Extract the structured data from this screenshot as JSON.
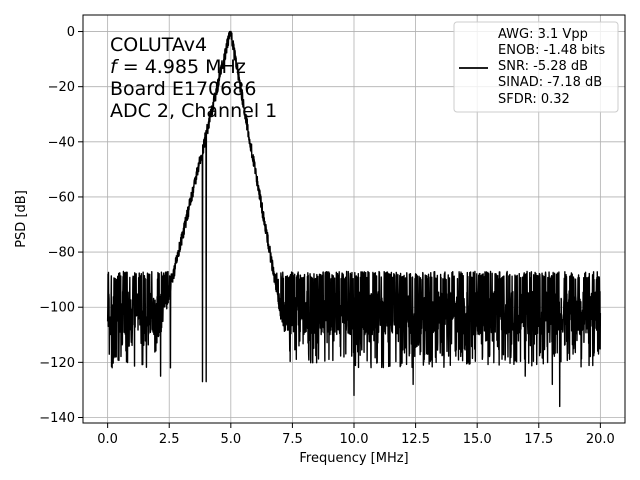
{
  "chart_data": {
    "type": "line",
    "xlabel": "Frequency [MHz]",
    "ylabel": "PSD [dB]",
    "xlim": [
      -1.0,
      21.0
    ],
    "ylim": [
      -142,
      6
    ],
    "xticks": [
      0.0,
      2.5,
      5.0,
      7.5,
      10.0,
      12.5,
      15.0,
      17.5,
      20.0
    ],
    "xtick_labels": [
      "0.0",
      "2.5",
      "5.0",
      "7.5",
      "10.0",
      "12.5",
      "15.0",
      "17.5",
      "20.0"
    ],
    "yticks": [
      0,
      -20,
      -40,
      -60,
      -80,
      -100,
      -120,
      -140
    ],
    "ytick_labels": [
      "0",
      "−20",
      "−40",
      "−60",
      "−80",
      "−100",
      "−120",
      "−140"
    ],
    "grid": true,
    "legend_position": "top-right",
    "annotation": {
      "line1": "COLUTAv4",
      "line2_var": "f",
      "line2_rest": " = 4.985 MHz",
      "line3": "Board E170686",
      "line4": "ADC 2, Channel 1"
    },
    "legend": {
      "lines": [
        "AWG: 3.1 Vpp",
        "ENOB: -1.48 bits",
        "SNR: -5.28 dB",
        "SINAD: -7.18 dB",
        "SFDR: 0.32"
      ],
      "color": "#000000"
    },
    "series": [
      {
        "color": "#000000",
        "peak_frequency": 4.985,
        "peak_value": 0,
        "noise_floor": -102,
        "noise_band": [
          -112,
          -90
        ],
        "noise_min": -135,
        "x_range": [
          0.0,
          20.0
        ],
        "sample_count": 2400,
        "spur_points": [
          {
            "x": 0.02,
            "y": -88
          },
          {
            "x": 0.35,
            "y": -118
          },
          {
            "x": 2.15,
            "y": -125
          },
          {
            "x": 2.55,
            "y": -122
          },
          {
            "x": 3.85,
            "y": -127
          },
          {
            "x": 4.0,
            "y": -127
          },
          {
            "x": 10.0,
            "y": -132
          },
          {
            "x": 12.4,
            "y": -128
          },
          {
            "x": 16.95,
            "y": -125
          },
          {
            "x": 18.05,
            "y": -128
          },
          {
            "x": 18.35,
            "y": -136
          },
          {
            "x": 19.95,
            "y": -89
          }
        ]
      }
    ]
  }
}
